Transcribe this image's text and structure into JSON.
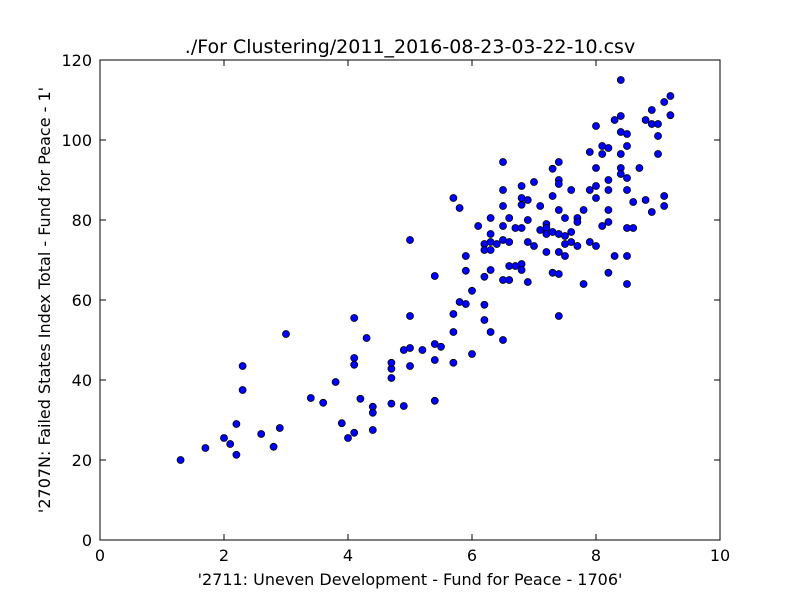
{
  "chart_data": {
    "type": "scatter",
    "title": "./For Clustering/2011_2016-08-23-03-22-10.csv",
    "xlabel": "'2711: Uneven Development - Fund for Peace - 1706'",
    "ylabel": "'2707N: Failed States Index Total - Fund for Peace - 1'",
    "xlim": [
      0,
      10
    ],
    "ylim": [
      0,
      120
    ],
    "xticks": [
      "0",
      "2",
      "4",
      "6",
      "8",
      "10"
    ],
    "yticks": [
      "0",
      "20",
      "40",
      "60",
      "80",
      "100",
      "120"
    ],
    "grid": false,
    "marker_color": "#0000ff",
    "marker_edge_color": "#000000",
    "points": [
      [
        1.3,
        20
      ],
      [
        1.7,
        23
      ],
      [
        2.0,
        25.5
      ],
      [
        2.1,
        24
      ],
      [
        2.2,
        21.3
      ],
      [
        2.2,
        29
      ],
      [
        2.3,
        43.5
      ],
      [
        2.3,
        37.5
      ],
      [
        2.6,
        26.5
      ],
      [
        2.8,
        23.3
      ],
      [
        2.9,
        28
      ],
      [
        3.0,
        51.5
      ],
      [
        3.4,
        35.5
      ],
      [
        3.6,
        34.3
      ],
      [
        3.8,
        39.5
      ],
      [
        3.9,
        29.2
      ],
      [
        4.0,
        25.5
      ],
      [
        4.1,
        26.8
      ],
      [
        4.1,
        55.5
      ],
      [
        4.1,
        45.5
      ],
      [
        4.1,
        43.8
      ],
      [
        4.2,
        35.3
      ],
      [
        4.3,
        50.5
      ],
      [
        4.4,
        33.3
      ],
      [
        4.4,
        31.8
      ],
      [
        4.4,
        27.5
      ],
      [
        4.7,
        42.8
      ],
      [
        4.7,
        40.5
      ],
      [
        4.7,
        44.3
      ],
      [
        4.7,
        34.1
      ],
      [
        4.9,
        47.5
      ],
      [
        4.9,
        33.5
      ],
      [
        5.0,
        56
      ],
      [
        5.0,
        48
      ],
      [
        5.0,
        43.5
      ],
      [
        5.0,
        75
      ],
      [
        5.2,
        47.5
      ],
      [
        5.4,
        66
      ],
      [
        5.4,
        49
      ],
      [
        5.4,
        45
      ],
      [
        5.4,
        34.8
      ],
      [
        5.5,
        48.3
      ],
      [
        5.7,
        85.5
      ],
      [
        5.7,
        56.5
      ],
      [
        5.7,
        52
      ],
      [
        5.7,
        44.3
      ],
      [
        5.8,
        83
      ],
      [
        5.8,
        59.5
      ],
      [
        5.9,
        71
      ],
      [
        5.9,
        67.3
      ],
      [
        5.9,
        59
      ],
      [
        6.0,
        62.3
      ],
      [
        6.0,
        46.5
      ],
      [
        6.1,
        78.5
      ],
      [
        6.2,
        74
      ],
      [
        6.2,
        72.5
      ],
      [
        6.2,
        65.8
      ],
      [
        6.2,
        58.8
      ],
      [
        6.2,
        55
      ],
      [
        6.3,
        80.5
      ],
      [
        6.3,
        76.5
      ],
      [
        6.3,
        74.5
      ],
      [
        6.3,
        72.5
      ],
      [
        6.3,
        67.5
      ],
      [
        6.3,
        52
      ],
      [
        6.4,
        74
      ],
      [
        6.5,
        94.5
      ],
      [
        6.5,
        87.5
      ],
      [
        6.5,
        83.5
      ],
      [
        6.5,
        78.5
      ],
      [
        6.5,
        75
      ],
      [
        6.5,
        65
      ],
      [
        6.5,
        50
      ],
      [
        6.6,
        80.5
      ],
      [
        6.6,
        74.5
      ],
      [
        6.6,
        68.5
      ],
      [
        6.6,
        65
      ],
      [
        6.7,
        78
      ],
      [
        6.7,
        68.5
      ],
      [
        6.8,
        88.5
      ],
      [
        6.8,
        85.5
      ],
      [
        6.8,
        83.8
      ],
      [
        6.8,
        78
      ],
      [
        6.8,
        69
      ],
      [
        6.8,
        67.5
      ],
      [
        6.9,
        85
      ],
      [
        6.9,
        80
      ],
      [
        6.9,
        74.5
      ],
      [
        6.9,
        64.5
      ],
      [
        7.0,
        89.5
      ],
      [
        7.0,
        73.5
      ],
      [
        7.1,
        83.5
      ],
      [
        7.1,
        77.5
      ],
      [
        7.2,
        79
      ],
      [
        7.2,
        78
      ],
      [
        7.2,
        76.5
      ],
      [
        7.2,
        72
      ],
      [
        7.3,
        92.8
      ],
      [
        7.3,
        86
      ],
      [
        7.3,
        77
      ],
      [
        7.3,
        66.8
      ],
      [
        7.4,
        94.5
      ],
      [
        7.4,
        90
      ],
      [
        7.4,
        89
      ],
      [
        7.4,
        82.5
      ],
      [
        7.4,
        76.5
      ],
      [
        7.4,
        72
      ],
      [
        7.4,
        66.5
      ],
      [
        7.4,
        56
      ],
      [
        7.5,
        80.5
      ],
      [
        7.5,
        76
      ],
      [
        7.5,
        74
      ],
      [
        7.5,
        71
      ],
      [
        7.6,
        87.5
      ],
      [
        7.6,
        77
      ],
      [
        7.6,
        74.5
      ],
      [
        7.7,
        80.5
      ],
      [
        7.7,
        79.5
      ],
      [
        7.7,
        73.5
      ],
      [
        7.8,
        82.5
      ],
      [
        7.8,
        64
      ],
      [
        7.9,
        97
      ],
      [
        7.9,
        87.5
      ],
      [
        7.9,
        74.5
      ],
      [
        8.0,
        103.5
      ],
      [
        8.0,
        93
      ],
      [
        8.0,
        88.5
      ],
      [
        8.0,
        85.5
      ],
      [
        8.0,
        73.5
      ],
      [
        8.1,
        98.5
      ],
      [
        8.1,
        96.5
      ],
      [
        8.1,
        78.5
      ],
      [
        8.2,
        98
      ],
      [
        8.2,
        90
      ],
      [
        8.2,
        87.5
      ],
      [
        8.2,
        82.5
      ],
      [
        8.2,
        79.5
      ],
      [
        8.2,
        66.8
      ],
      [
        8.3,
        105
      ],
      [
        8.3,
        71
      ],
      [
        8.4,
        115
      ],
      [
        8.4,
        106
      ],
      [
        8.4,
        102
      ],
      [
        8.4,
        96.5
      ],
      [
        8.4,
        93
      ],
      [
        8.4,
        91.5
      ],
      [
        8.5,
        101.5
      ],
      [
        8.5,
        98.5
      ],
      [
        8.5,
        90.5
      ],
      [
        8.5,
        87.5
      ],
      [
        8.5,
        78
      ],
      [
        8.5,
        71
      ],
      [
        8.5,
        64
      ],
      [
        8.6,
        84.5
      ],
      [
        8.6,
        78
      ],
      [
        8.7,
        93
      ],
      [
        8.8,
        105
      ],
      [
        8.8,
        85
      ],
      [
        8.9,
        107.5
      ],
      [
        8.9,
        104
      ],
      [
        8.9,
        82
      ],
      [
        9.0,
        104
      ],
      [
        9.0,
        101
      ],
      [
        9.0,
        96.5
      ],
      [
        9.1,
        109.5
      ],
      [
        9.1,
        86
      ],
      [
        9.1,
        83.5
      ],
      [
        9.2,
        111
      ],
      [
        9.2,
        106.2
      ]
    ]
  }
}
